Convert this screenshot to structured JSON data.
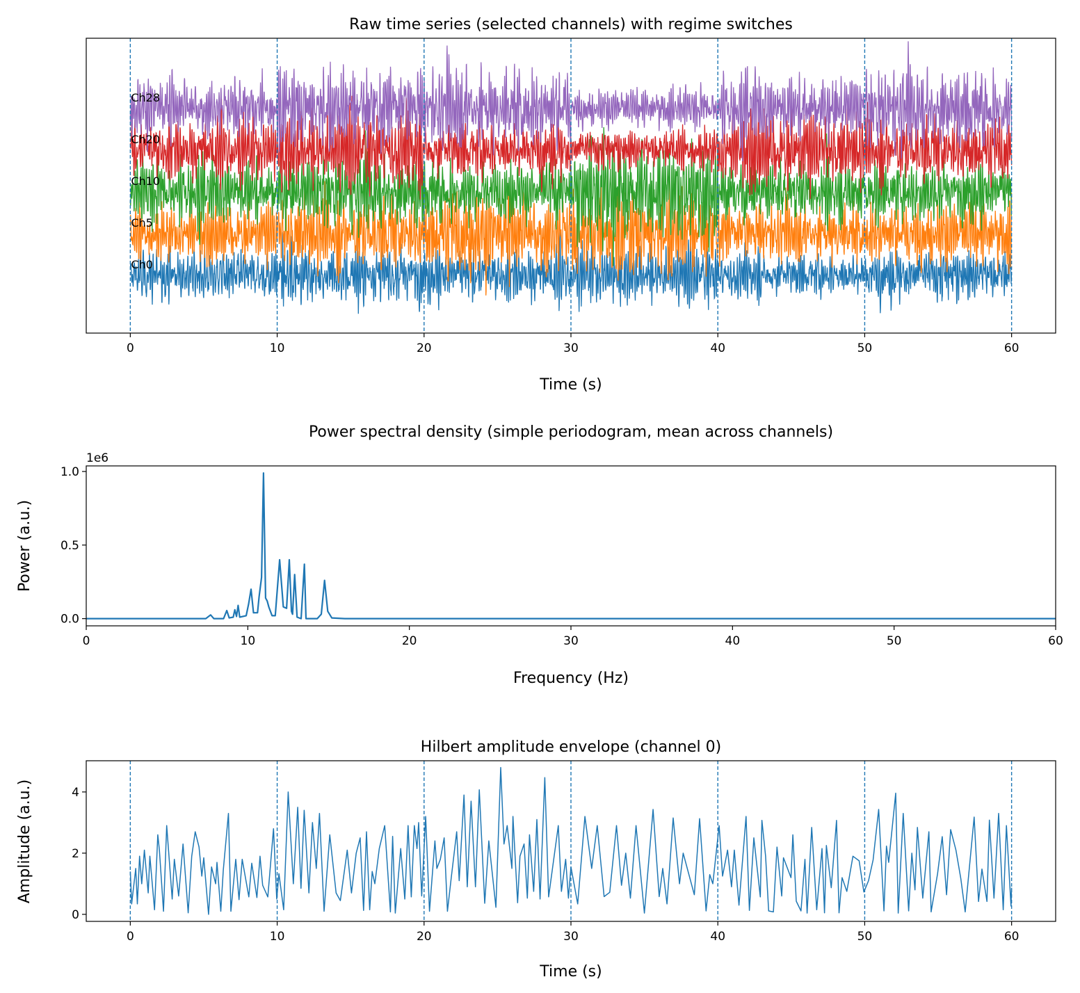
{
  "chart_data": [
    {
      "type": "line",
      "title": "Raw time series (selected channels) with regime switches",
      "xlabel": "Time (s)",
      "ylabel": "",
      "xlim": [
        -3,
        63
      ],
      "ylim": [
        -11.2,
        45.3
      ],
      "xticks": [
        "0",
        "10",
        "20",
        "30",
        "40",
        "50",
        "60"
      ],
      "yticks": [],
      "grid": false,
      "regime_switches": [
        0,
        10,
        20,
        30,
        40,
        50,
        60
      ],
      "regime_line_color": "#1f77b4",
      "series": [
        {
          "name": "Ch0",
          "color": "#1f77b4",
          "offset": 0,
          "regime_amplitude": [
            1.6,
            2.0,
            1.8,
            1.8,
            1.5,
            1.8
          ]
        },
        {
          "name": "Ch5",
          "color": "#ff7f0e",
          "offset": 8,
          "regime_amplitude": [
            1.8,
            2.4,
            2.8,
            2.8,
            1.9,
            2.0
          ]
        },
        {
          "name": "Ch10",
          "color": "#2ca02c",
          "offset": 16,
          "regime_amplitude": [
            2.0,
            2.2,
            2.0,
            3.2,
            2.0,
            2.0
          ]
        },
        {
          "name": "Ch20",
          "color": "#d62728",
          "offset": 24,
          "regime_amplitude": [
            2.0,
            2.4,
            2.0,
            1.4,
            2.4,
            2.2
          ]
        },
        {
          "name": "Ch28",
          "color": "#9467bd",
          "offset": 32,
          "regime_amplitude": [
            2.0,
            2.6,
            2.6,
            1.2,
            2.0,
            2.4
          ]
        }
      ]
    },
    {
      "type": "line",
      "title": "Power spectral density (simple periodogram, mean across channels)",
      "xlabel": "Frequency (Hz)",
      "ylabel": "Power (a.u.)",
      "y_scale_label": "1e6",
      "xlim": [
        0,
        60
      ],
      "ylim": [
        -0.049,
        1.038
      ],
      "xticks": [
        "0",
        "10",
        "20",
        "30",
        "40",
        "50",
        "60"
      ],
      "yticks": [
        "0.0",
        "0.5",
        "1.0"
      ],
      "grid": false,
      "color": "#1f77b4",
      "x": [
        0,
        7.4,
        7.7,
        7.9,
        8.5,
        8.7,
        8.85,
        9.1,
        9.2,
        9.3,
        9.4,
        9.5,
        9.9,
        10.05,
        10.2,
        10.35,
        10.6,
        10.7,
        10.85,
        10.97,
        11.1,
        11.2,
        11.3,
        11.5,
        11.7,
        11.97,
        12.2,
        12.4,
        12.57,
        12.7,
        12.77,
        12.9,
        13.05,
        13.3,
        13.5,
        13.6,
        14.3,
        14.55,
        14.75,
        14.95,
        15.2,
        16,
        60
      ],
      "y": [
        0,
        0,
        0.025,
        0,
        0,
        0.055,
        0.005,
        0.01,
        0.06,
        0.015,
        0.09,
        0.01,
        0.02,
        0.1,
        0.2,
        0.04,
        0.04,
        0.15,
        0.28,
        0.99,
        0.14,
        0.12,
        0.08,
        0.02,
        0.02,
        0.4,
        0.08,
        0.07,
        0.4,
        0.05,
        0.03,
        0.3,
        0.01,
        0,
        0.37,
        0,
        0,
        0.03,
        0.26,
        0.05,
        0.005,
        0,
        0
      ]
    },
    {
      "type": "line",
      "title": "Hilbert amplitude envelope (channel 0)",
      "xlabel": "Time (s)",
      "ylabel": "Amplitude (a.u.)",
      "xlim": [
        -3,
        63
      ],
      "ylim": [
        -0.23,
        5.02
      ],
      "xticks": [
        "0",
        "10",
        "20",
        "30",
        "40",
        "50",
        "60"
      ],
      "yticks": [
        "0",
        "2",
        "4"
      ],
      "grid": false,
      "regime_switches": [
        0,
        10,
        20,
        30,
        40,
        50,
        60
      ],
      "color": "#1f77b4",
      "x": [
        0,
        0.09,
        0.37,
        0.48,
        0.63,
        0.78,
        0.96,
        1.22,
        1.33,
        1.65,
        1.87,
        1.98,
        2.26,
        2.48,
        2.85,
        3.0,
        3.29,
        3.59,
        3.94,
        4.18,
        4.42,
        4.68,
        4.87,
        5.0,
        5.33,
        5.53,
        5.81,
        5.9,
        6.16,
        6.33,
        6.68,
        6.85,
        7.18,
        7.4,
        7.62,
        8.07,
        8.27,
        8.62,
        8.83,
        9.01,
        9.36,
        9.75,
        9.97,
        10.12,
        10.44,
        10.75,
        11.1,
        11.4,
        11.62,
        11.84,
        12.16,
        12.4,
        12.66,
        12.88,
        13.19,
        13.58,
        14.01,
        14.3,
        14.77,
        15.06,
        15.38,
        15.65,
        15.88,
        16.08,
        16.3,
        16.47,
        16.65,
        16.95,
        17.32,
        17.71,
        17.86,
        18.04,
        18.41,
        18.69,
        18.91,
        19.13,
        19.34,
        19.52,
        19.63,
        19.84,
        20.11,
        20.37,
        20.74,
        20.87,
        21.11,
        21.37,
        21.59,
        21.85,
        22.22,
        22.39,
        22.72,
        22.94,
        23.2,
        23.5,
        23.76,
        24.13,
        24.41,
        24.89,
        25.22,
        25.44,
        25.66,
        25.98,
        26.05,
        26.37,
        26.53,
        26.81,
        27.03,
        27.18,
        27.46,
        27.68,
        27.9,
        28.22,
        28.48,
        29.14,
        29.35,
        29.64,
        29.83,
        30.0,
        30.46,
        30.95,
        31.41,
        31.79,
        32.26,
        32.64,
        33.1,
        33.44,
        33.73,
        34.05,
        34.43,
        35.0,
        35.59,
        36.01,
        36.25,
        36.54,
        36.96,
        37.39,
        37.64,
        38.4,
        38.76,
        39.2,
        39.45,
        39.66,
        40.09,
        40.32,
        40.66,
        40.93,
        41.12,
        41.44,
        41.92,
        42.15,
        42.45,
        42.89,
        43.0,
        43.25,
        43.46,
        43.78,
        44.03,
        44.35,
        44.47,
        44.98,
        45.11,
        45.34,
        45.66,
        45.93,
        46.08,
        46.39,
        46.73,
        47.09,
        47.26,
        47.39,
        47.72,
        48.08,
        48.25,
        48.46,
        48.78,
        49.2,
        49.62,
        49.94,
        50.26,
        50.57,
        50.95,
        51.31,
        51.48,
        51.63,
        52.11,
        52.28,
        52.62,
        52.99,
        53.21,
        53.42,
        53.59,
        53.95,
        54.37,
        54.52,
        54.96,
        55.28,
        55.57,
        55.85,
        56.21,
        56.54,
        56.84,
        57.45,
        57.75,
        57.98,
        58.32,
        58.49,
        58.8,
        59.12,
        59.43,
        59.65,
        59.96,
        60.0
      ],
      "y": [
        1.4,
        0.34,
        1.5,
        0.34,
        1.9,
        1.0,
        2.1,
        0.7,
        1.9,
        0.15,
        2.6,
        2.1,
        0.1,
        2.9,
        0.5,
        1.8,
        0.6,
        2.3,
        0.05,
        1.9,
        2.7,
        2.2,
        1.25,
        1.85,
        0.0,
        1.55,
        1.0,
        1.7,
        0.1,
        1.45,
        3.3,
        0.1,
        1.8,
        0.48,
        1.8,
        0.57,
        1.67,
        0.55,
        1.9,
        0.95,
        0.57,
        2.8,
        0.5,
        1.33,
        0.15,
        4.0,
        1.0,
        3.5,
        0.85,
        3.4,
        0.7,
        3.0,
        1.5,
        3.3,
        0.1,
        2.6,
        0.7,
        0.45,
        2.1,
        0.7,
        2.0,
        2.5,
        0.13,
        2.7,
        0.15,
        1.4,
        1.0,
        2.15,
        2.9,
        0.08,
        2.55,
        0.04,
        2.15,
        0.5,
        2.9,
        0.57,
        2.9,
        2.15,
        3.0,
        0.6,
        3.2,
        0.1,
        2.4,
        1.5,
        1.8,
        2.5,
        0.1,
        1.2,
        2.7,
        1.1,
        3.9,
        0.9,
        3.7,
        0.9,
        4.07,
        0.36,
        2.4,
        0.23,
        4.8,
        2.3,
        2.9,
        1.5,
        3.2,
        0.38,
        1.9,
        2.3,
        0.53,
        2.6,
        0.75,
        3.1,
        0.5,
        4.47,
        0.57,
        2.9,
        0.75,
        1.8,
        0.53,
        1.55,
        0.34,
        3.2,
        1.5,
        2.9,
        0.58,
        0.72,
        2.9,
        0.95,
        2.0,
        0.53,
        2.9,
        0.04,
        3.43,
        0.58,
        1.5,
        0.34,
        3.15,
        1.0,
        2.0,
        0.64,
        3.13,
        0.11,
        1.3,
        1.0,
        2.9,
        1.25,
        2.1,
        0.9,
        2.1,
        0.3,
        3.2,
        0.13,
        2.5,
        0.57,
        3.07,
        1.9,
        0.11,
        0.08,
        2.2,
        0.6,
        1.85,
        1.2,
        2.6,
        0.43,
        0.11,
        1.8,
        0.04,
        2.84,
        0.15,
        2.15,
        0.05,
        2.25,
        0.87,
        3.07,
        0.05,
        1.2,
        0.75,
        1.9,
        1.75,
        0.73,
        1.1,
        1.78,
        3.43,
        0.11,
        2.23,
        1.7,
        3.96,
        0.04,
        3.3,
        0.11,
        2.0,
        0.8,
        2.84,
        0.53,
        2.7,
        0.08,
        1.33,
        2.54,
        0.64,
        2.77,
        2.1,
        1.17,
        0.08,
        3.18,
        0.42,
        1.48,
        0.42,
        3.08,
        0.53,
        3.3,
        0.15,
        2.9,
        0.27,
        0.87
      ]
    }
  ]
}
